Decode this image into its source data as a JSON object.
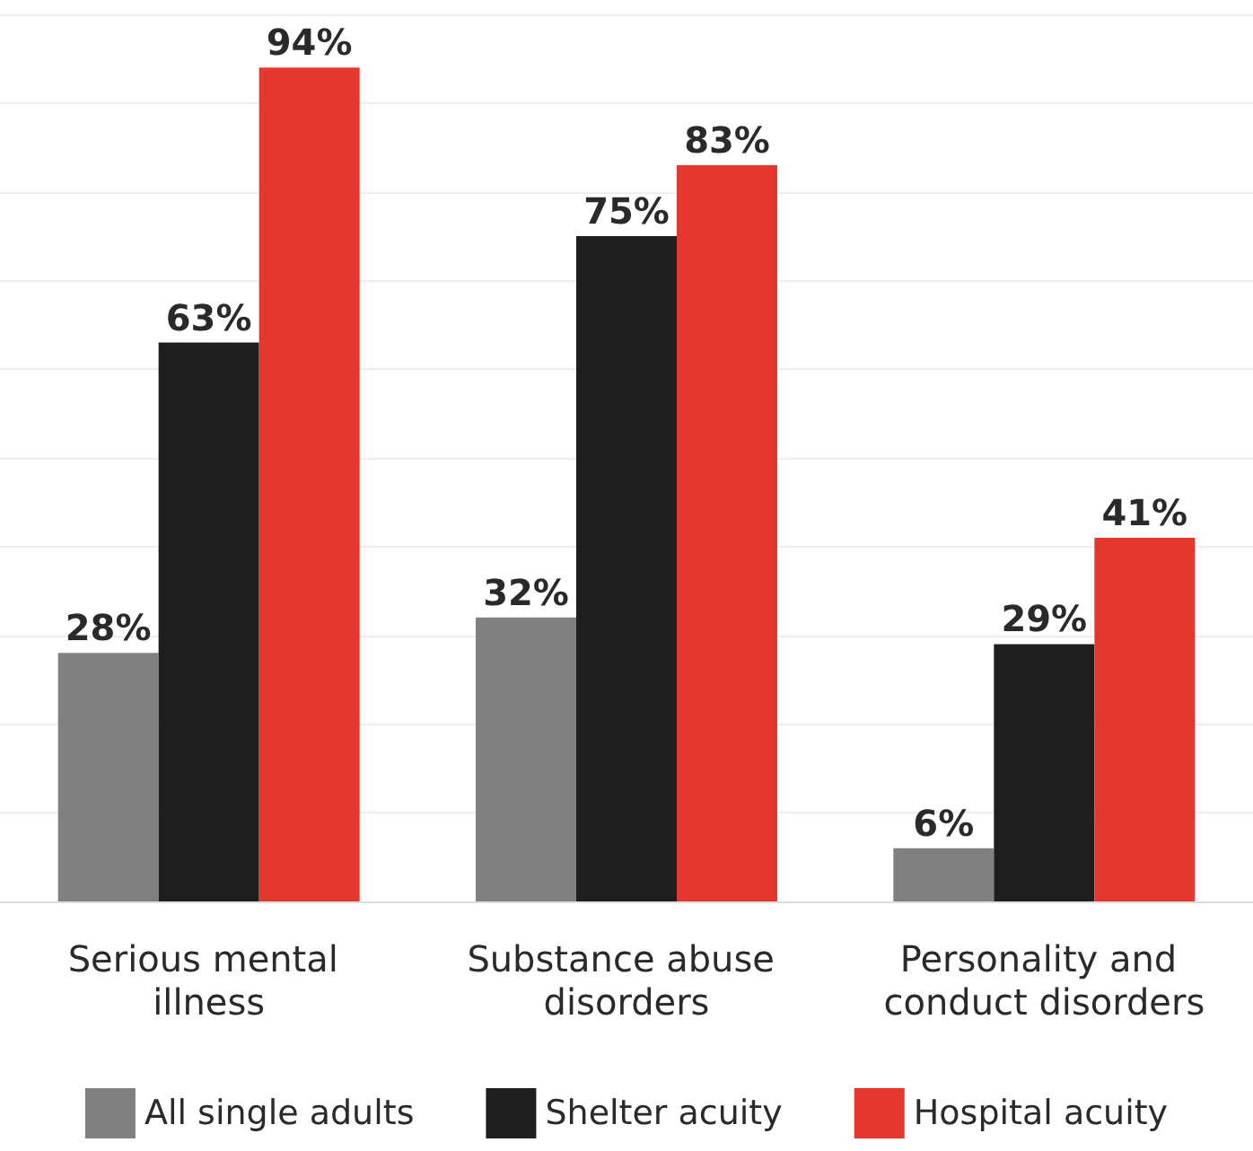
{
  "chart_data": {
    "type": "bar",
    "categories": [
      "Serious mental illness",
      "Substance abuse disorders",
      "Personality and conduct disorders"
    ],
    "series": [
      {
        "name": "All single adults",
        "color": "#808080",
        "values": [
          28,
          32,
          6
        ],
        "value_labels": [
          "28%",
          "32%",
          "6%"
        ]
      },
      {
        "name": "Shelter acuity",
        "color": "#1e1e1e",
        "values": [
          63,
          75,
          29
        ],
        "value_labels": [
          "63%",
          "75%",
          "29%"
        ]
      },
      {
        "name": "Hospital acuity",
        "color": "#e4382e",
        "values": [
          94,
          83,
          41
        ],
        "value_labels": [
          "94%",
          "83%",
          "41%"
        ]
      }
    ],
    "grid": "y",
    "legend": "bottom",
    "tick_labels": "x"
  }
}
